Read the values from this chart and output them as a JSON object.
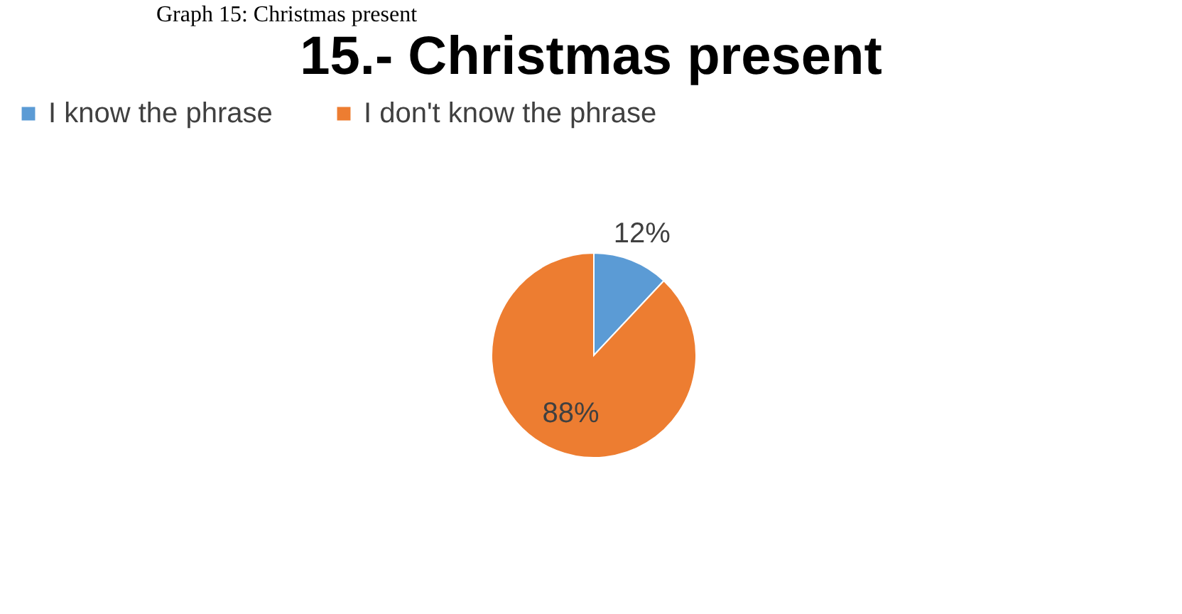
{
  "chart_data": {
    "type": "pie",
    "title": "15.-  Christmas present",
    "categories": [
      "I know the phrase",
      "I don't know the phrase"
    ],
    "values": [
      12,
      88
    ],
    "colors": [
      "#5b9bd5",
      "#ed7d31"
    ],
    "value_labels": [
      "12%",
      "88%"
    ],
    "legend": "top",
    "annotations": [
      "Graph 15: Christmas present"
    ]
  }
}
